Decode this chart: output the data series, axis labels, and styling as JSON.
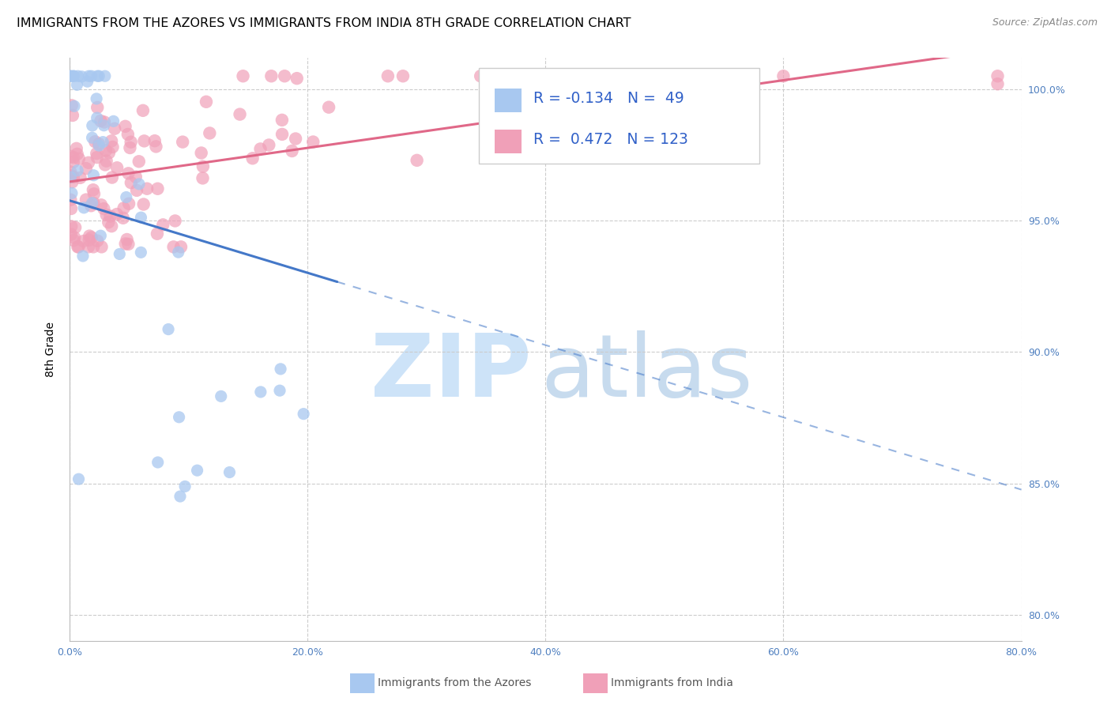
{
  "title": "IMMIGRANTS FROM THE AZORES VS IMMIGRANTS FROM INDIA 8TH GRADE CORRELATION CHART",
  "source": "Source: ZipAtlas.com",
  "ylabel": "8th Grade",
  "xlim": [
    0.0,
    0.8
  ],
  "ylim": [
    0.79,
    1.012
  ],
  "y_ticks": [
    0.8,
    0.85,
    0.9,
    0.95,
    1.0
  ],
  "x_ticks": [
    0.0,
    0.2,
    0.4,
    0.6,
    0.8
  ],
  "blue_color": "#A8C8F0",
  "pink_color": "#F0A0B8",
  "blue_line_color": "#4478C8",
  "pink_line_color": "#E06888",
  "blue_R": -0.134,
  "pink_R": 0.472,
  "blue_N": 49,
  "pink_N": 123,
  "watermark_zip_color": "#C8E0F8",
  "watermark_atlas_color": "#B0CCE8",
  "legend_label_azores": "Immigrants from the Azores",
  "legend_label_india": "Immigrants from India",
  "title_fontsize": 11.5,
  "source_fontsize": 9,
  "tick_fontsize": 9,
  "tick_color": "#5080C0",
  "ylabel_fontsize": 10
}
